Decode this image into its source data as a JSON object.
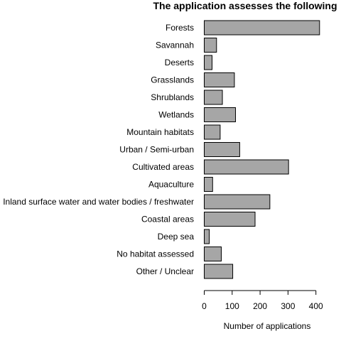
{
  "chart_data": {
    "type": "bar",
    "orientation": "horizontal",
    "title": "The application assesses the following",
    "xlabel": "Number of applications",
    "ylabel": "",
    "categories": [
      "Forests",
      "Savannah",
      "Deserts",
      "Grasslands",
      "Shrublands",
      "Wetlands",
      "Mountain habitats",
      "Urban / Semi-urban",
      "Cultivated areas",
      "Aquaculture",
      "Inland surface water and water bodies / freshwater",
      "Coastal areas",
      "Deep sea",
      "No habitat assessed",
      "Other / Unclear"
    ],
    "values": [
      413,
      44,
      28,
      108,
      65,
      112,
      57,
      127,
      302,
      30,
      235,
      182,
      18,
      61,
      102
    ],
    "xlim": [
      0,
      400
    ],
    "xticks": [
      0,
      100,
      200,
      300,
      400
    ],
    "grid": false,
    "bar_color": "#a6a6a6",
    "border_color": "#000000"
  }
}
